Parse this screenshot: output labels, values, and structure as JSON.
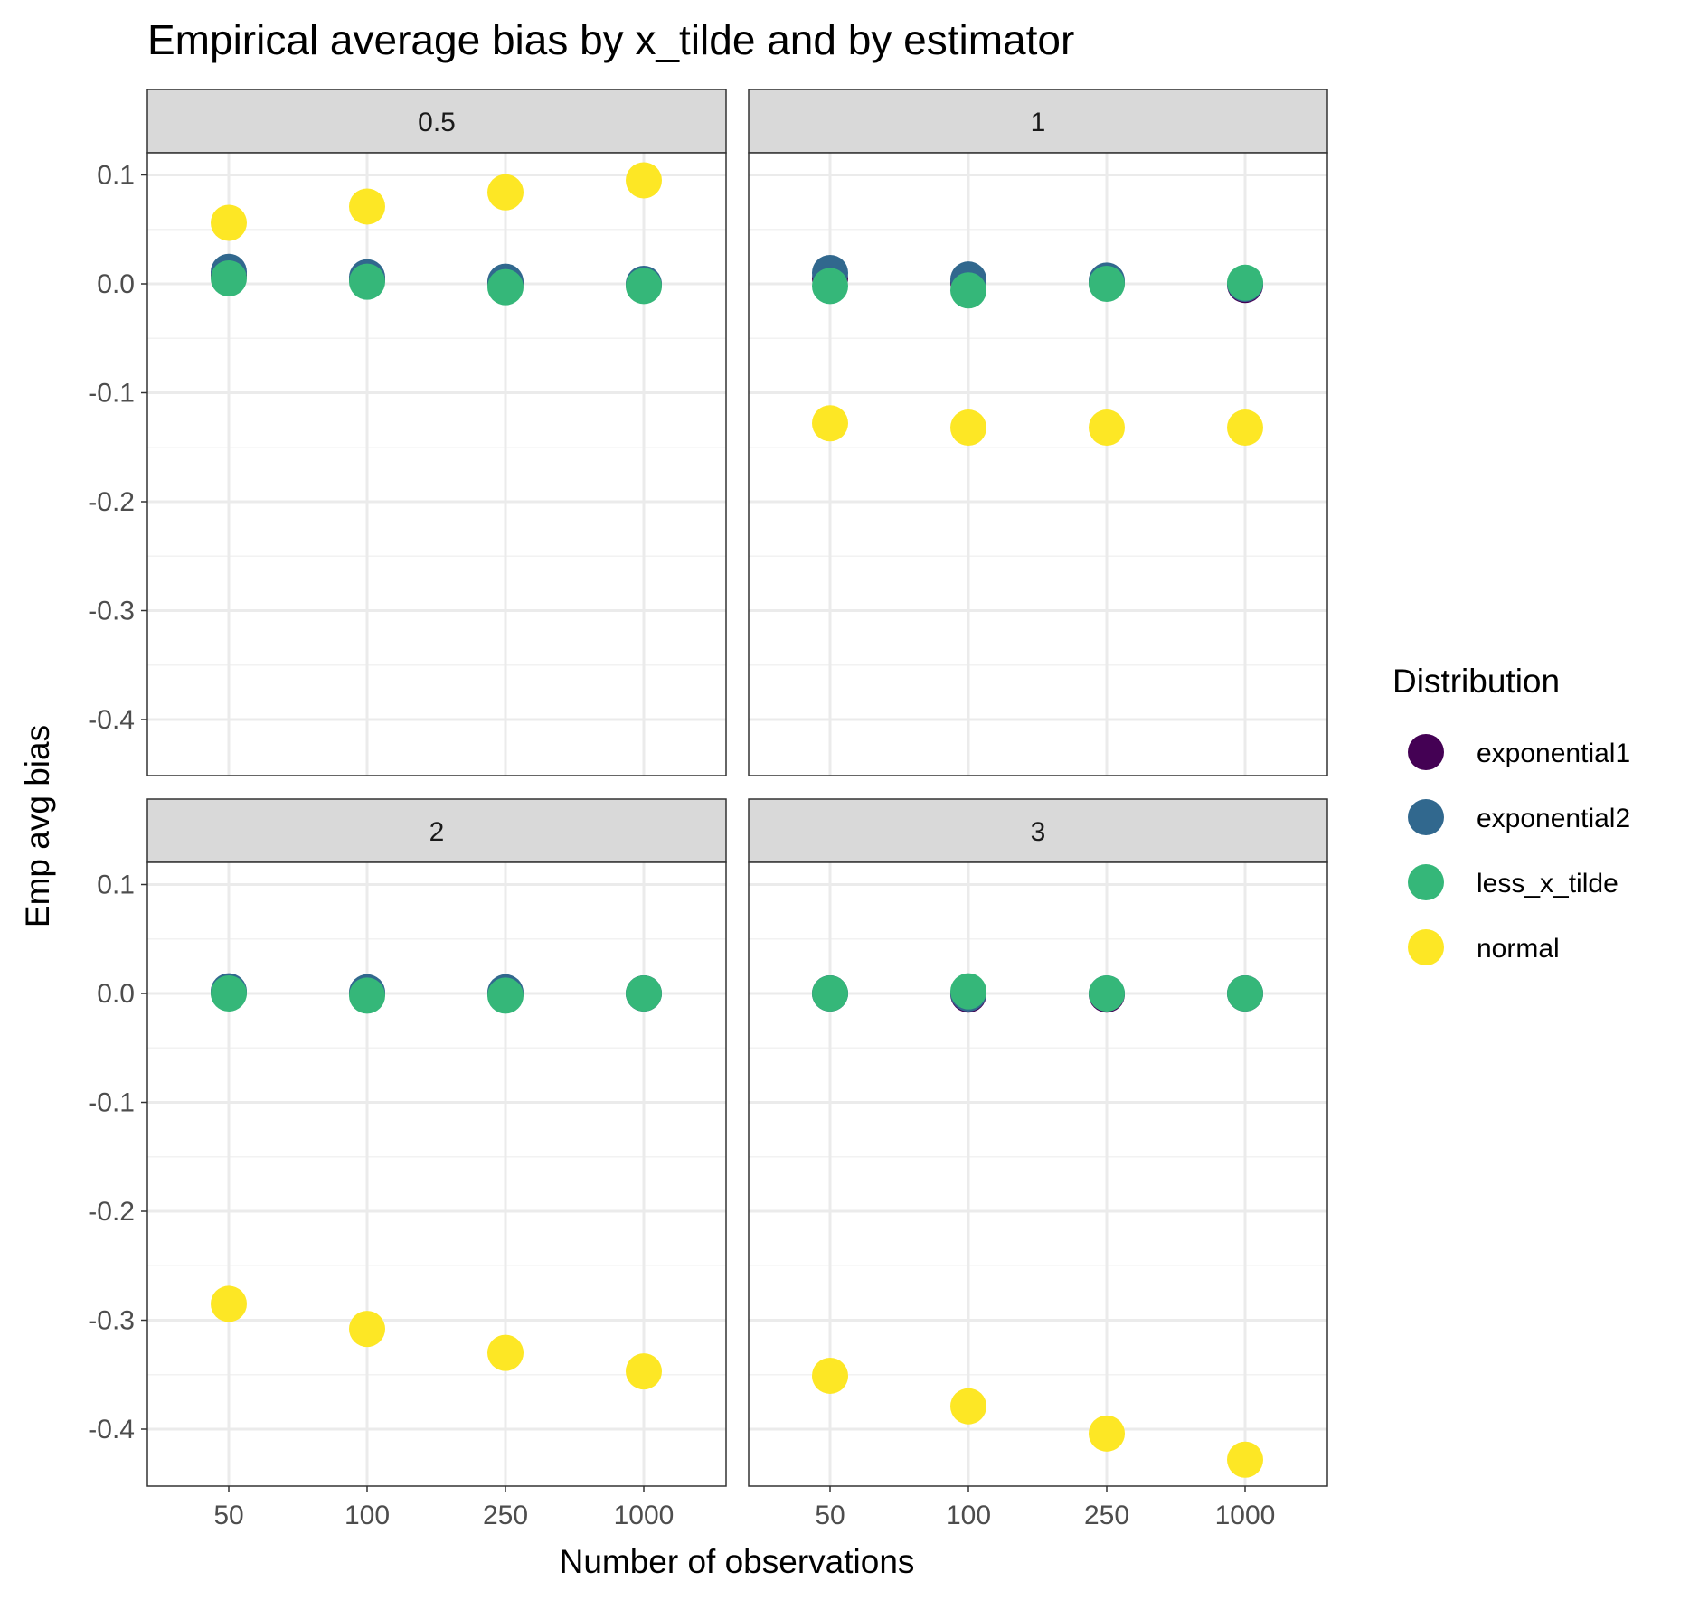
{
  "chart_data": {
    "type": "scatter",
    "title": "Empirical average bias by x_tilde and by estimator",
    "xlabel": "Number of observations",
    "ylabel": "Emp avg bias",
    "categories": [
      "50",
      "100",
      "250",
      "1000"
    ],
    "ylim": [
      -0.45,
      0.12
    ],
    "yticks": [
      0.1,
      0.0,
      -0.1,
      -0.2,
      -0.3,
      -0.4
    ],
    "ytick_labels": [
      "0.1",
      "0.0",
      "-0.1",
      "-0.2",
      "-0.3",
      "-0.4"
    ],
    "grid": true,
    "legend": {
      "title": "Distribution",
      "position": "right",
      "entries": [
        {
          "name": "exponential1",
          "color": "#440154"
        },
        {
          "name": "exponential2",
          "color": "#31688E"
        },
        {
          "name": "less_x_tilde",
          "color": "#35B779"
        },
        {
          "name": "normal",
          "color": "#FDE725"
        }
      ]
    },
    "facets": [
      {
        "label": "0.5",
        "series": [
          {
            "name": "exponential1",
            "values": [
              0.008,
              0.004,
              0.001,
              -0.001
            ]
          },
          {
            "name": "exponential2",
            "values": [
              0.011,
              0.006,
              0.002,
              0.0
            ]
          },
          {
            "name": "less_x_tilde",
            "values": [
              0.005,
              0.002,
              -0.003,
              -0.002
            ]
          },
          {
            "name": "normal",
            "values": [
              0.056,
              0.071,
              0.084,
              0.095
            ]
          }
        ]
      },
      {
        "label": "1",
        "series": [
          {
            "name": "exponential1",
            "values": [
              0.005,
              0.001,
              0.001,
              -0.001
            ]
          },
          {
            "name": "exponential2",
            "values": [
              0.01,
              0.004,
              0.003,
              0.0
            ]
          },
          {
            "name": "less_x_tilde",
            "values": [
              -0.002,
              -0.006,
              0.0,
              0.001
            ]
          },
          {
            "name": "normal",
            "values": [
              -0.128,
              -0.132,
              -0.132,
              -0.132
            ]
          }
        ]
      },
      {
        "label": "2",
        "series": [
          {
            "name": "exponential1",
            "values": [
              0.001,
              0.0,
              0.0,
              0.0
            ]
          },
          {
            "name": "exponential2",
            "values": [
              0.002,
              0.001,
              0.001,
              0.0
            ]
          },
          {
            "name": "less_x_tilde",
            "values": [
              0.0,
              -0.002,
              -0.002,
              0.0
            ]
          },
          {
            "name": "normal",
            "values": [
              -0.285,
              -0.308,
              -0.33,
              -0.347
            ]
          }
        ]
      },
      {
        "label": "3",
        "series": [
          {
            "name": "exponential1",
            "values": [
              0.0,
              -0.001,
              -0.001,
              0.0
            ]
          },
          {
            "name": "exponential2",
            "values": [
              0.0,
              0.0,
              0.0,
              0.0
            ]
          },
          {
            "name": "less_x_tilde",
            "values": [
              0.0,
              0.002,
              0.0,
              0.0
            ]
          },
          {
            "name": "normal",
            "values": [
              -0.351,
              -0.379,
              -0.404,
              -0.428
            ]
          }
        ]
      }
    ]
  }
}
